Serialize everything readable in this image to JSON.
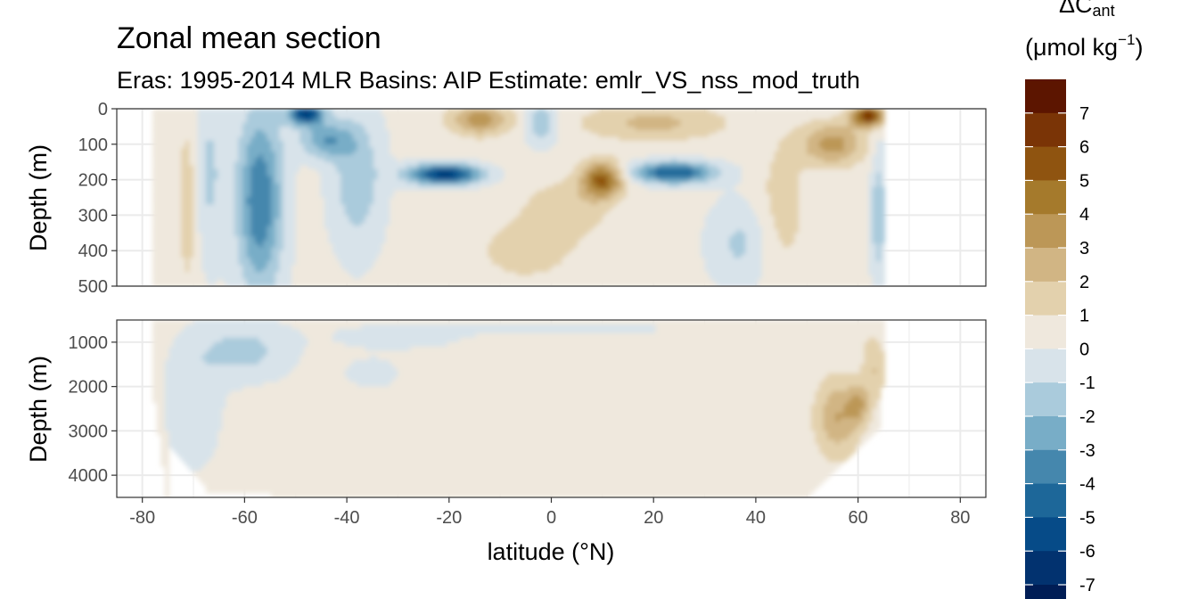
{
  "chart_data": {
    "type": "heatmap",
    "title": "Zonal mean section",
    "subtitle": "Eras: 1995-2014 MLR Basins: AIP Estimate: emlr_VS_nss_mod_truth",
    "xlabel": "latitude (°N)",
    "ylabel": "Depth (m)",
    "xlim": [
      -85,
      85
    ],
    "x_ticks": [
      "-80",
      "-60",
      "-40",
      "-20",
      "0",
      "20",
      "40",
      "60",
      "80"
    ],
    "panels": [
      {
        "name": "upper",
        "ylim": [
          500,
          0
        ],
        "y_ticks": [
          "0",
          "100",
          "200",
          "300",
          "400",
          "500"
        ]
      },
      {
        "name": "lower",
        "ylim": [
          4500,
          500
        ],
        "y_ticks": [
          "1000",
          "2000",
          "3000",
          "4000"
        ]
      }
    ],
    "data_extent_lat": [
      -78,
      65
    ],
    "legend": {
      "title_main": "ΔC",
      "title_sub": "ant",
      "unit_prefix": "(μmol kg",
      "unit_sup": "−1",
      "unit_suffix": ")",
      "placement": "right",
      "breaks": [
        "7",
        "6",
        "5",
        "4",
        "3",
        "2",
        "1",
        "0",
        "-1",
        "-2",
        "-3",
        "-4",
        "-5",
        "-6",
        "-7"
      ],
      "colors": [
        "#5c1500",
        "#7a3406",
        "#8f5410",
        "#a57a2c",
        "#bc9757",
        "#d1b584",
        "#e3d1ad",
        "#efe8dd",
        "#d8e3ea",
        "#aacbdc",
        "#78adc7",
        "#4587ad",
        "#1d6799",
        "#064b88",
        "#02326f",
        "#001d55"
      ]
    },
    "features": [
      {
        "lat": [
          -50,
          -46
        ],
        "depth": [
          0,
          60
        ],
        "value": -6
      },
      {
        "lat": [
          -60,
          -52
        ],
        "depth": [
          0,
          500
        ],
        "value": -4
      },
      {
        "lat": [
          -30,
          -12
        ],
        "depth": [
          150,
          230
        ],
        "value": -6
      },
      {
        "lat": [
          15,
          34
        ],
        "depth": [
          150,
          220
        ],
        "value": -5
      },
      {
        "lat": [
          6,
          14
        ],
        "depth": [
          160,
          260
        ],
        "value": 5
      },
      {
        "lat": [
          -17,
          -9
        ],
        "depth": [
          0,
          80
        ],
        "value": 4
      },
      {
        "lat": [
          60,
          65
        ],
        "depth": [
          0,
          50
        ],
        "value": 7
      },
      {
        "lat": [
          53,
          62
        ],
        "depth": [
          2000,
          3500
        ],
        "value": 3
      }
    ]
  }
}
